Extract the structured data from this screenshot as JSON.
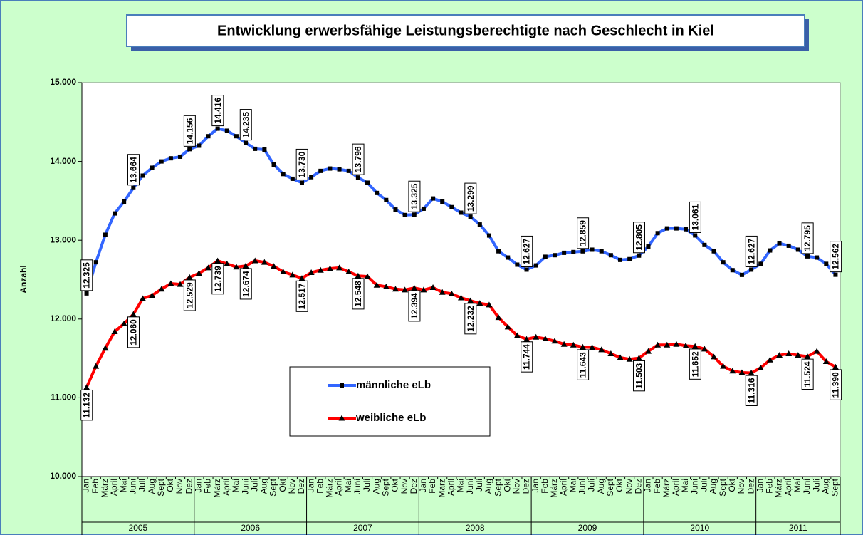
{
  "chart_data": {
    "type": "line",
    "title": "Entwicklung erwerbsfähige Leistungsberechtigte nach Geschlecht in Kiel",
    "y_label": "Anzahl",
    "categories": [
      "Jan",
      "Feb",
      "März",
      "April",
      "Mai",
      "Juni",
      "Juli",
      "Aug",
      "Sept",
      "Okt",
      "Nov",
      "Dez",
      "Jan",
      "Feb",
      "März",
      "April",
      "Mai",
      "Juni",
      "Juli",
      "Aug",
      "Sept",
      "Okt",
      "Nov",
      "Dez",
      "Jan",
      "Feb",
      "März",
      "April",
      "Mai",
      "Juni",
      "Juli",
      "Aug",
      "Sept",
      "Okt",
      "Nov",
      "Dez",
      "Jan",
      "Feb",
      "März",
      "April",
      "Mai",
      "Juni",
      "Juli",
      "Aug",
      "Sept",
      "Okt",
      "Nov",
      "Dez",
      "Jan",
      "Feb",
      "März",
      "April",
      "Mai",
      "Juni",
      "Juli",
      "Aug",
      "Sept",
      "Okt",
      "Nov",
      "Dez",
      "Jan",
      "Feb",
      "März",
      "April",
      "Mai",
      "Juni",
      "Juli",
      "Aug",
      "Sept",
      "Okt",
      "Nov",
      "Dez",
      "Jan",
      "Feb",
      "März",
      "April",
      "Mai",
      "Juni",
      "Juli",
      "Aug",
      "Sept"
    ],
    "years": [
      "2005",
      "2006",
      "2007",
      "2008",
      "2009",
      "2010",
      "2011"
    ],
    "ylim": [
      10000,
      15000
    ],
    "yticks": [
      {
        "value": 10000,
        "label": "10.000"
      },
      {
        "value": 11000,
        "label": "11.000"
      },
      {
        "value": 12000,
        "label": "12.000"
      },
      {
        "value": 13000,
        "label": "13.000"
      },
      {
        "value": 14000,
        "label": "14.000"
      },
      {
        "value": 15000,
        "label": "15.000"
      }
    ],
    "series": [
      {
        "name": "männliche eLb",
        "color": "#3366ff",
        "marker": "square",
        "values": [
          12325,
          12720,
          13070,
          13340,
          13490,
          13664,
          13820,
          13920,
          14000,
          14040,
          14060,
          14156,
          14200,
          14320,
          14416,
          14390,
          14320,
          14235,
          14160,
          14150,
          13960,
          13840,
          13780,
          13730,
          13800,
          13880,
          13910,
          13900,
          13880,
          13796,
          13730,
          13600,
          13510,
          13390,
          13320,
          13325,
          13400,
          13530,
          13490,
          13420,
          13350,
          13299,
          13200,
          13060,
          12860,
          12780,
          12690,
          12627,
          12680,
          12790,
          12810,
          12840,
          12850,
          12859,
          12880,
          12860,
          12810,
          12750,
          12760,
          12805,
          12920,
          13090,
          13150,
          13150,
          13140,
          13061,
          12940,
          12860,
          12720,
          12620,
          12560,
          12627,
          12700,
          12870,
          12960,
          12930,
          12880,
          12795,
          12780,
          12700,
          12562
        ],
        "value_labels": [
          "12.325",
          null,
          null,
          null,
          null,
          "13.664",
          null,
          null,
          null,
          null,
          null,
          "14.156",
          null,
          null,
          "14.416",
          null,
          null,
          "14.235",
          null,
          null,
          null,
          null,
          null,
          "13.730",
          null,
          null,
          null,
          null,
          null,
          "13.796",
          null,
          null,
          null,
          null,
          null,
          "13.325",
          null,
          null,
          null,
          null,
          null,
          "13.299",
          null,
          null,
          null,
          null,
          null,
          "12.627",
          null,
          null,
          null,
          null,
          null,
          "12.859",
          null,
          null,
          null,
          null,
          null,
          "12.805",
          null,
          null,
          null,
          null,
          null,
          "13.061",
          null,
          null,
          null,
          null,
          null,
          "12.627",
          null,
          null,
          null,
          null,
          null,
          "12.795",
          null,
          null,
          "12.562"
        ]
      },
      {
        "name": "weibliche eLb",
        "color": "#ff0000",
        "marker": "triangle",
        "values": [
          11132,
          11400,
          11630,
          11840,
          11940,
          12060,
          12260,
          12300,
          12380,
          12450,
          12440,
          12529,
          12580,
          12650,
          12739,
          12700,
          12660,
          12674,
          12740,
          12720,
          12670,
          12600,
          12560,
          12517,
          12590,
          12620,
          12640,
          12650,
          12600,
          12548,
          12540,
          12430,
          12410,
          12380,
          12370,
          12394,
          12370,
          12400,
          12340,
          12320,
          12270,
          12232,
          12200,
          12180,
          12020,
          11900,
          11790,
          11744,
          11770,
          11750,
          11720,
          11680,
          11670,
          11643,
          11640,
          11610,
          11560,
          11510,
          11490,
          11503,
          11590,
          11670,
          11670,
          11680,
          11660,
          11652,
          11620,
          11520,
          11400,
          11340,
          11320,
          11316,
          11380,
          11480,
          11540,
          11560,
          11540,
          11524,
          11590,
          11460,
          11390
        ],
        "value_labels": [
          "11.132",
          null,
          null,
          null,
          null,
          "12.060",
          null,
          null,
          null,
          null,
          null,
          "12.529",
          null,
          null,
          "12.739",
          null,
          null,
          "12.674",
          null,
          null,
          null,
          null,
          null,
          "12.517",
          null,
          null,
          null,
          null,
          null,
          "12.548",
          null,
          null,
          null,
          null,
          null,
          "12.394",
          null,
          null,
          null,
          null,
          null,
          "12.232",
          null,
          null,
          null,
          null,
          null,
          "11.744",
          null,
          null,
          null,
          null,
          null,
          "11.643",
          null,
          null,
          null,
          null,
          null,
          "11.503",
          null,
          null,
          null,
          null,
          null,
          "11.652",
          null,
          null,
          null,
          null,
          null,
          "11.316",
          null,
          null,
          null,
          null,
          null,
          "11.524",
          null,
          null,
          "11.390"
        ]
      }
    ]
  }
}
